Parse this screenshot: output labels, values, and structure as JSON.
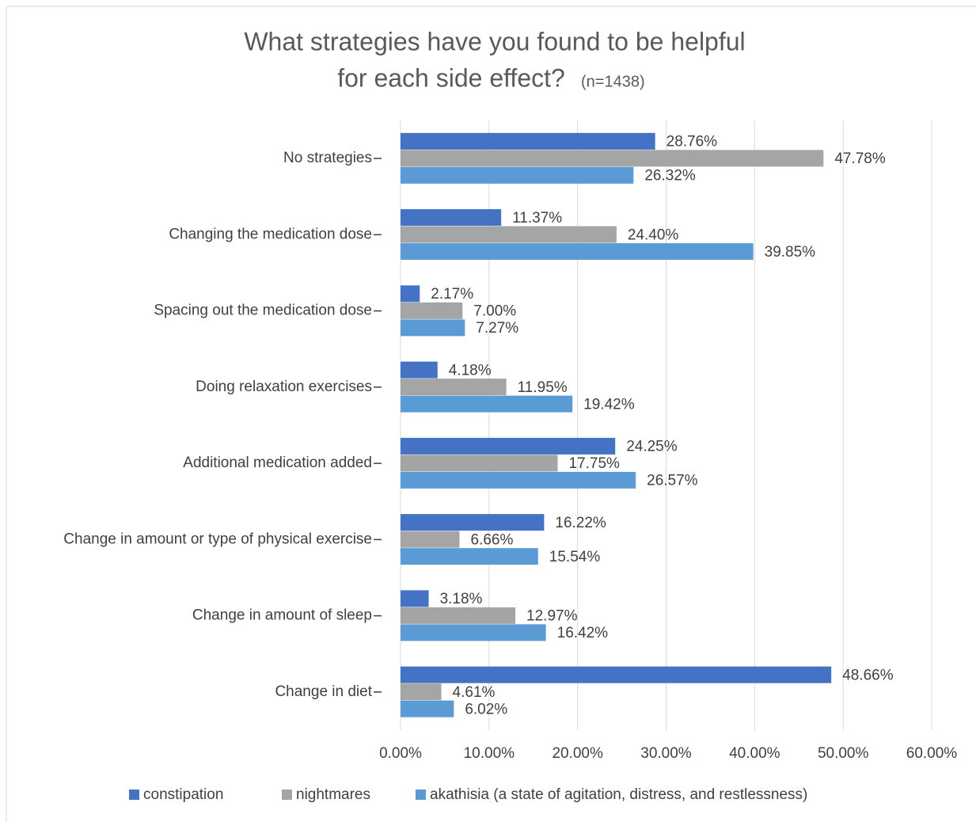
{
  "chart_data": {
    "type": "bar",
    "orientation": "horizontal",
    "title": [
      "What strategies have you found to be helpful",
      "for each side effect?"
    ],
    "subtitle": "(n=1438)",
    "categories": [
      "No strategies",
      "Changing the medication dose",
      "Spacing out the medication dose",
      "Doing relaxation exercises",
      "Additional medication added",
      "Change in amount or type of physical exercise",
      "Change in amount of sleep",
      "Change in diet"
    ],
    "series": [
      {
        "name": "constipation",
        "color": "#4472c4",
        "values": [
          28.76,
          11.37,
          2.17,
          4.18,
          24.25,
          16.22,
          3.18,
          48.66
        ],
        "value_labels": [
          "28.76%",
          "11.37%",
          "2.17%",
          "4.18%",
          "24.25%",
          "16.22%",
          "3.18%",
          "48.66%"
        ]
      },
      {
        "name": "nightmares",
        "color": "#a5a5a5",
        "values": [
          47.78,
          24.4,
          7.0,
          11.95,
          17.75,
          6.66,
          12.97,
          4.61
        ],
        "value_labels": [
          "47.78%",
          "24.40%",
          "7.00%",
          "11.95%",
          "17.75%",
          "6.66%",
          "12.97%",
          "4.61%"
        ]
      },
      {
        "name": "akathisia (a state of agitation, distress, and restlessness)",
        "color": "#5b9bd5",
        "values": [
          26.32,
          39.85,
          7.27,
          19.42,
          26.57,
          15.54,
          16.42,
          6.02
        ],
        "value_labels": [
          "26.32%",
          "39.85%",
          "7.27%",
          "19.42%",
          "26.57%",
          "15.54%",
          "16.42%",
          "6.02%"
        ]
      }
    ],
    "xlim": [
      0,
      60
    ],
    "xticks": [
      {
        "value": 0,
        "label": "0.00%"
      },
      {
        "value": 10,
        "label": "10.00%"
      },
      {
        "value": 20,
        "label": "20.00%"
      },
      {
        "value": 30,
        "label": "30.00%"
      },
      {
        "value": 40,
        "label": "40.00%"
      },
      {
        "value": 50,
        "label": "50.00%"
      },
      {
        "value": 60,
        "label": "60.00%"
      }
    ],
    "grid": true,
    "legend": "bottom"
  }
}
